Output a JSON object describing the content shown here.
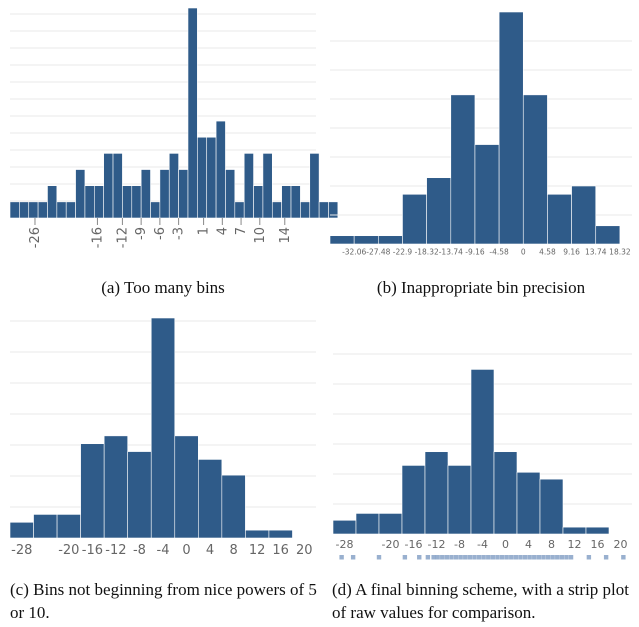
{
  "colors": {
    "bar": "#2f5b89",
    "grid": "#e9e9e9",
    "tick_label": "#666666",
    "strip": "#7f9cc3"
  },
  "captions": {
    "a": "(a) Too many bins",
    "b": "(b) Inappropriate bin precision",
    "c": "(c) Bins not beginning from nice powers of 5 or 10.",
    "d": "(d) A final binning scheme, with a strip plot of raw values for comparison."
  },
  "chart_data": [
    {
      "id": "a",
      "type": "bar",
      "title": "",
      "xlabel": "",
      "ylabel": "",
      "x_range": [
        -30,
        19
      ],
      "bin_width": 1.5,
      "ylim": [
        0,
        13
      ],
      "values": [
        1,
        1,
        1,
        1,
        2,
        1,
        1,
        3,
        2,
        2,
        4,
        4,
        2,
        2,
        3,
        1,
        3,
        4,
        3,
        13,
        5,
        5,
        6,
        3,
        1,
        4,
        2,
        4,
        1,
        2,
        2,
        1,
        4,
        1,
        1
      ],
      "ticks": [
        -26,
        -16,
        -12,
        -9,
        -6,
        -3,
        1,
        4,
        7,
        10,
        14
      ],
      "tick_labels": [
        "-26",
        "-16",
        "-12",
        "-9",
        "-6",
        "-3",
        "1",
        "4",
        "7",
        "10",
        "14"
      ],
      "grid": true
    },
    {
      "id": "b",
      "type": "bar",
      "title": "",
      "xlabel": "",
      "ylabel": "",
      "x_range": [
        -36.645,
        20.61
      ],
      "bin_width": 4.58,
      "ylim": [
        0,
        14
      ],
      "values": [
        0.5,
        0.5,
        0.5,
        3,
        4,
        9,
        6,
        14,
        9,
        3,
        3.5,
        1.1
      ],
      "ticks": [
        -32.06,
        -27.48,
        -22.9,
        -18.32,
        -13.74,
        -9.16,
        -4.58,
        0,
        4.58,
        9.16,
        13.74,
        18.32
      ],
      "tick_labels": [
        "-32.06",
        "-27.48",
        "-22.9",
        "-18.32",
        "-13.74",
        "-9.16",
        "-4.58",
        "0",
        "4.58",
        "9.16",
        "13.74",
        "18.32"
      ],
      "grid": true
    },
    {
      "id": "c",
      "type": "bar",
      "title": "",
      "xlabel": "",
      "ylabel": "",
      "x_range": [
        -30,
        22
      ],
      "bin_width": 4,
      "ylim": [
        0,
        14
      ],
      "values": [
        1,
        1.5,
        1.5,
        6,
        6.5,
        5.5,
        14,
        6.5,
        5,
        4,
        0.5,
        0.5
      ],
      "ticks": [
        -28,
        -20,
        -16,
        -12,
        -8,
        -4,
        0,
        4,
        8,
        12,
        16,
        20
      ],
      "tick_labels": [
        "-28",
        "-20",
        "-16",
        "-12",
        "-8",
        "-4",
        "0",
        "4",
        "8",
        "12",
        "16",
        "20"
      ],
      "grid": true
    },
    {
      "id": "d",
      "type": "bar",
      "title": "",
      "xlabel": "",
      "ylabel": "",
      "x_range": [
        -30,
        22
      ],
      "bin_width": 4,
      "ylim": [
        0,
        14
      ],
      "values": [
        1,
        1.5,
        1.5,
        5,
        6,
        5,
        12,
        6,
        4.5,
        4,
        0.5,
        0.5
      ],
      "ticks": [
        -28,
        -20,
        -16,
        -12,
        -8,
        -4,
        0,
        4,
        8,
        12,
        16,
        20
      ],
      "tick_labels": [
        "-28",
        "-20",
        "-16",
        "-12",
        "-8",
        "-4",
        "0",
        "4",
        "8",
        "12",
        "16",
        "20"
      ],
      "grid": true,
      "strip_values": [
        -28.5,
        -26.5,
        -22,
        -17.5,
        -15,
        -13.5,
        -12.5,
        -11.8,
        -11,
        -10.2,
        -9.4,
        -8.6,
        -7.8,
        -7,
        -6.2,
        -5.4,
        -4.6,
        -3.8,
        -3,
        -2.2,
        -1.4,
        -0.6,
        0.2,
        1,
        1.8,
        2.6,
        3.4,
        4.2,
        5,
        5.8,
        6.6,
        7.4,
        8.2,
        9,
        9.8,
        10.6,
        11.4,
        14.5,
        17.5,
        20.5
      ]
    }
  ]
}
